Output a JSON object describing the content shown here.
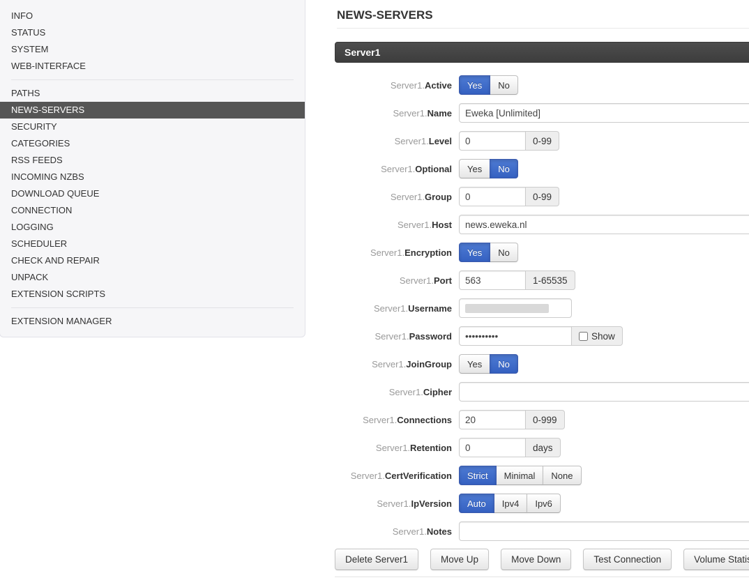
{
  "colors": {
    "accent_blue": "#3561c1",
    "selected_item_bg": "#565656",
    "section_header_bg": "#424242",
    "sidebar_bg": "#f6f6f8"
  },
  "sidebar": {
    "selected": "NEWS-SERVERS",
    "groups": [
      {
        "items": [
          "INFO",
          "STATUS",
          "SYSTEM",
          "WEB-INTERFACE"
        ]
      },
      {
        "items": [
          "PATHS",
          "NEWS-SERVERS",
          "SECURITY",
          "CATEGORIES",
          "RSS FEEDS",
          "INCOMING NZBS",
          "DOWNLOAD QUEUE",
          "CONNECTION",
          "LOGGING",
          "SCHEDULER",
          "CHECK AND REPAIR",
          "UNPACK",
          "EXTENSION SCRIPTS"
        ]
      },
      {
        "items": [
          "EXTENSION MANAGER"
        ]
      }
    ]
  },
  "main": {
    "title": "NEWS-SERVERS",
    "section_header": "Server1",
    "fields": [
      {
        "prefix": "Server1.",
        "name": "Active",
        "control": "toggle",
        "options": [
          "Yes",
          "No"
        ],
        "selected_index": 0
      },
      {
        "prefix": "Server1.",
        "name": "Name",
        "control": "text",
        "size": "wide",
        "value": "Eweka [Unlimited]"
      },
      {
        "prefix": "Server1.",
        "name": "Level",
        "control": "text",
        "size": "small",
        "value": "0",
        "addon": "0-99"
      },
      {
        "prefix": "Server1.",
        "name": "Optional",
        "control": "toggle",
        "options": [
          "Yes",
          "No"
        ],
        "selected_index": 1
      },
      {
        "prefix": "Server1.",
        "name": "Group",
        "control": "text",
        "size": "small",
        "value": "0",
        "addon": "0-99"
      },
      {
        "prefix": "Server1.",
        "name": "Host",
        "control": "text",
        "size": "wide",
        "value": "news.eweka.nl"
      },
      {
        "prefix": "Server1.",
        "name": "Encryption",
        "control": "toggle",
        "options": [
          "Yes",
          "No"
        ],
        "selected_index": 0
      },
      {
        "prefix": "Server1.",
        "name": "Port",
        "control": "text",
        "size": "small",
        "value": "563",
        "addon": "1-65535"
      },
      {
        "prefix": "Server1.",
        "name": "Username",
        "control": "text",
        "size": "medium",
        "value": "",
        "redacted": true
      },
      {
        "prefix": "Server1.",
        "name": "Password",
        "control": "text",
        "size": "medium",
        "value": "••••••••••",
        "addon_checkbox_label": "Show",
        "checkbox_checked": false
      },
      {
        "prefix": "Server1.",
        "name": "JoinGroup",
        "control": "toggle",
        "options": [
          "Yes",
          "No"
        ],
        "selected_index": 1
      },
      {
        "prefix": "Server1.",
        "name": "Cipher",
        "control": "text",
        "size": "wide",
        "value": ""
      },
      {
        "prefix": "Server1.",
        "name": "Connections",
        "control": "text",
        "size": "small",
        "value": "20",
        "addon": "0-999"
      },
      {
        "prefix": "Server1.",
        "name": "Retention",
        "control": "text",
        "size": "small",
        "value": "0",
        "addon": "days"
      },
      {
        "prefix": "Server1.",
        "name": "CertVerification",
        "control": "toggle",
        "options": [
          "Strict",
          "Minimal",
          "None"
        ],
        "selected_index": 0
      },
      {
        "prefix": "Server1.",
        "name": "IpVersion",
        "control": "toggle",
        "options": [
          "Auto",
          "Ipv4",
          "Ipv6"
        ],
        "selected_index": 0
      },
      {
        "prefix": "Server1.",
        "name": "Notes",
        "control": "text",
        "size": "wide",
        "value": ""
      }
    ],
    "buttons": [
      "Delete Server1",
      "Move Up",
      "Move Down",
      "Test Connection",
      "Volume Statistics"
    ]
  }
}
